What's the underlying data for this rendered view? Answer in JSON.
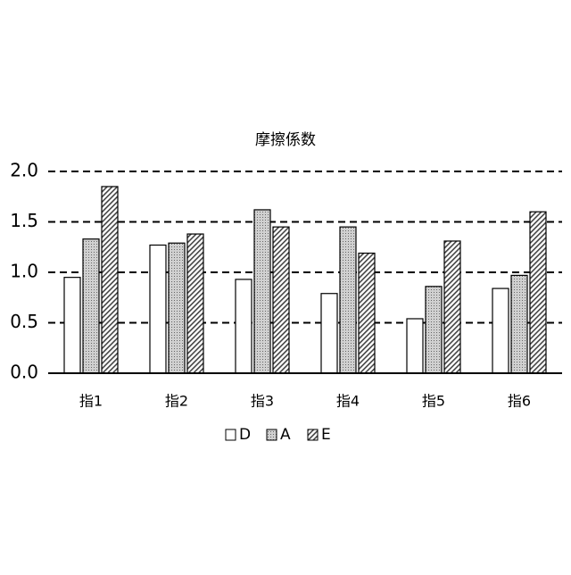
{
  "chart_data": {
    "type": "bar",
    "title": "摩擦係数",
    "categories": [
      "指1",
      "指2",
      "指3",
      "指4",
      "指5",
      "指6"
    ],
    "series": [
      {
        "name": "D",
        "color": "#ffffff",
        "pattern": "none",
        "values": [
          0.95,
          1.27,
          0.93,
          0.79,
          0.54,
          0.84
        ]
      },
      {
        "name": "A",
        "color": "#c8c8c8",
        "pattern": "dots",
        "values": [
          1.33,
          1.29,
          1.62,
          1.45,
          0.86,
          0.97
        ]
      },
      {
        "name": "E",
        "color": "#ffffff",
        "pattern": "hatch",
        "values": [
          1.85,
          1.38,
          1.45,
          1.19,
          1.31,
          1.6
        ]
      }
    ],
    "ylim": [
      0,
      2.0
    ],
    "yticks": [
      {
        "value": 0,
        "label": "0.0"
      },
      {
        "value": 0.5,
        "label": "0.5"
      },
      {
        "value": 1.0,
        "label": "1.0"
      },
      {
        "value": 1.5,
        "label": "1.5"
      },
      {
        "value": 2.0,
        "label": "2.0"
      }
    ],
    "grid": true,
    "legend": "bottom"
  }
}
